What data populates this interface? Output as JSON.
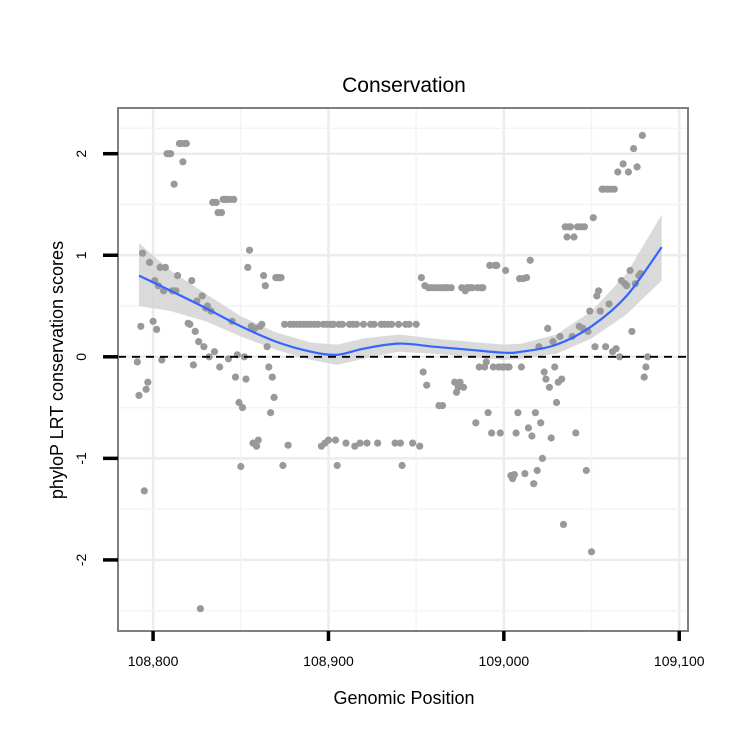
{
  "chart_data": {
    "type": "scatter",
    "title": "Conservation",
    "xlabel": "Genomic Position",
    "ylabel": "phyloP LRT conservation scores",
    "xlim": [
      108780,
      109105
    ],
    "ylim": [
      -2.7,
      2.45
    ],
    "x_ticks": [
      108800,
      108900,
      109000,
      109100
    ],
    "x_tick_labels": [
      "108,800",
      "108,900",
      "109,000",
      "109,100"
    ],
    "y_ticks": [
      -2,
      -1,
      0,
      1,
      2
    ],
    "y_tick_labels": [
      "-2",
      "-1",
      "0",
      "1",
      "2"
    ],
    "grid": true,
    "reference_line": {
      "y": 0,
      "style": "dashed"
    },
    "point_color": "#999999",
    "smooth_color": "#3366ff",
    "ribbon_color": "#d4d4d4",
    "points": [
      [
        108791,
        -0.05
      ],
      [
        108792,
        -0.38
      ],
      [
        108793,
        0.3
      ],
      [
        108794,
        1.02
      ],
      [
        108795,
        -1.32
      ],
      [
        108796,
        -0.32
      ],
      [
        108797,
        -0.25
      ],
      [
        108798,
        0.93
      ],
      [
        108800,
        0.35
      ],
      [
        108801,
        0.75
      ],
      [
        108802,
        0.27
      ],
      [
        108803,
        0.7
      ],
      [
        108804,
        0.88
      ],
      [
        108805,
        -0.03
      ],
      [
        108806,
        0.65
      ],
      [
        108807,
        0.88
      ],
      [
        108808,
        2.0
      ],
      [
        108809,
        2.0
      ],
      [
        108810,
        2.0
      ],
      [
        108811,
        0.65
      ],
      [
        108812,
        1.7
      ],
      [
        108813,
        0.65
      ],
      [
        108814,
        0.8
      ],
      [
        108815,
        2.1
      ],
      [
        108816,
        2.1
      ],
      [
        108817,
        1.92
      ],
      [
        108818,
        2.1
      ],
      [
        108819,
        2.1
      ],
      [
        108820,
        0.33
      ],
      [
        108821,
        0.32
      ],
      [
        108822,
        0.75
      ],
      [
        108823,
        -0.08
      ],
      [
        108824,
        0.25
      ],
      [
        108825,
        0.55
      ],
      [
        108826,
        0.15
      ],
      [
        108827,
        -2.48
      ],
      [
        108828,
        0.6
      ],
      [
        108829,
        0.1
      ],
      [
        108830,
        0.48
      ],
      [
        108831,
        0.5
      ],
      [
        108832,
        0.0
      ],
      [
        108833,
        0.45
      ],
      [
        108834,
        1.52
      ],
      [
        108835,
        0.05
      ],
      [
        108836,
        1.52
      ],
      [
        108837,
        1.42
      ],
      [
        108838,
        -0.1
      ],
      [
        108839,
        1.42
      ],
      [
        108840,
        1.55
      ],
      [
        108841,
        1.55
      ],
      [
        108842,
        1.55
      ],
      [
        108843,
        -0.02
      ],
      [
        108844,
        1.55
      ],
      [
        108845,
        0.35
      ],
      [
        108846,
        1.55
      ],
      [
        108847,
        -0.2
      ],
      [
        108848,
        0.02
      ],
      [
        108849,
        -0.45
      ],
      [
        108850,
        -1.08
      ],
      [
        108851,
        -0.5
      ],
      [
        108852,
        0.0
      ],
      [
        108853,
        -0.22
      ],
      [
        108854,
        0.88
      ],
      [
        108855,
        1.05
      ],
      [
        108856,
        0.3
      ],
      [
        108857,
        -0.85
      ],
      [
        108858,
        0.28
      ],
      [
        108859,
        -0.88
      ],
      [
        108860,
        -0.82
      ],
      [
        108861,
        0.3
      ],
      [
        108862,
        0.32
      ],
      [
        108863,
        0.8
      ],
      [
        108864,
        0.7
      ],
      [
        108865,
        0.1
      ],
      [
        108866,
        -0.1
      ],
      [
        108867,
        -0.55
      ],
      [
        108868,
        -0.2
      ],
      [
        108869,
        -0.4
      ],
      [
        108870,
        0.78
      ],
      [
        108871,
        0.78
      ],
      [
        108872,
        0.78
      ],
      [
        108873,
        0.78
      ],
      [
        108874,
        -1.07
      ],
      [
        108875,
        0.32
      ],
      [
        108877,
        -0.87
      ],
      [
        108878,
        0.32
      ],
      [
        108880,
        0.32
      ],
      [
        108882,
        0.32
      ],
      [
        108884,
        0.32
      ],
      [
        108886,
        0.32
      ],
      [
        108888,
        0.32
      ],
      [
        108890,
        0.32
      ],
      [
        108892,
        0.32
      ],
      [
        108894,
        0.32
      ],
      [
        108896,
        -0.88
      ],
      [
        108897,
        0.32
      ],
      [
        108898,
        -0.85
      ],
      [
        108899,
        0.32
      ],
      [
        108900,
        -0.82
      ],
      [
        108901,
        0.32
      ],
      [
        108902,
        0.32
      ],
      [
        108903,
        0.32
      ],
      [
        108904,
        -0.82
      ],
      [
        108905,
        -1.07
      ],
      [
        108906,
        0.32
      ],
      [
        108908,
        0.32
      ],
      [
        108910,
        -0.85
      ],
      [
        108912,
        0.32
      ],
      [
        108914,
        0.32
      ],
      [
        108915,
        -0.88
      ],
      [
        108916,
        0.32
      ],
      [
        108918,
        -0.85
      ],
      [
        108920,
        0.32
      ],
      [
        108922,
        -0.85
      ],
      [
        108924,
        0.32
      ],
      [
        108926,
        0.32
      ],
      [
        108928,
        -0.85
      ],
      [
        108930,
        0.32
      ],
      [
        108932,
        0.32
      ],
      [
        108934,
        0.32
      ],
      [
        108936,
        0.32
      ],
      [
        108938,
        -0.85
      ],
      [
        108940,
        0.32
      ],
      [
        108941,
        -0.85
      ],
      [
        108942,
        -1.07
      ],
      [
        108944,
        0.32
      ],
      [
        108946,
        0.32
      ],
      [
        108948,
        -0.85
      ],
      [
        108950,
        0.32
      ],
      [
        108952,
        -0.88
      ],
      [
        108953,
        0.78
      ],
      [
        108954,
        -0.15
      ],
      [
        108955,
        0.7
      ],
      [
        108956,
        -0.28
      ],
      [
        108957,
        0.68
      ],
      [
        108958,
        0.68
      ],
      [
        108960,
        0.68
      ],
      [
        108962,
        0.68
      ],
      [
        108963,
        -0.48
      ],
      [
        108964,
        0.68
      ],
      [
        108965,
        -0.48
      ],
      [
        108966,
        0.68
      ],
      [
        108967,
        0.68
      ],
      [
        108968,
        0.68
      ],
      [
        108970,
        0.68
      ],
      [
        108972,
        -0.25
      ],
      [
        108973,
        -0.35
      ],
      [
        108974,
        -0.3
      ],
      [
        108975,
        -0.25
      ],
      [
        108976,
        0.68
      ],
      [
        108977,
        -0.3
      ],
      [
        108978,
        0.65
      ],
      [
        108979,
        0.68
      ],
      [
        108980,
        0.68
      ],
      [
        108981,
        0.68
      ],
      [
        108982,
        0.68
      ],
      [
        108984,
        -0.65
      ],
      [
        108985,
        0.68
      ],
      [
        108986,
        -0.1
      ],
      [
        108987,
        0.68
      ],
      [
        108988,
        0.68
      ],
      [
        108989,
        -0.1
      ],
      [
        108990,
        -0.05
      ],
      [
        108991,
        -0.55
      ],
      [
        108992,
        0.9
      ],
      [
        108993,
        -0.75
      ],
      [
        108994,
        -0.1
      ],
      [
        108995,
        0.9
      ],
      [
        108996,
        0.9
      ],
      [
        108997,
        -0.1
      ],
      [
        108998,
        -0.75
      ],
      [
        108999,
        -0.1
      ],
      [
        109000,
        -0.1
      ],
      [
        109001,
        0.85
      ],
      [
        109002,
        -0.1
      ],
      [
        109003,
        -0.1
      ],
      [
        109004,
        -1.17
      ],
      [
        109005,
        -1.2
      ],
      [
        109006,
        -1.16
      ],
      [
        109007,
        -0.75
      ],
      [
        109008,
        -0.55
      ],
      [
        109009,
        0.77
      ],
      [
        109010,
        -0.1
      ],
      [
        109011,
        0.77
      ],
      [
        109012,
        -1.15
      ],
      [
        109013,
        0.78
      ],
      [
        109014,
        -0.7
      ],
      [
        109015,
        0.95
      ],
      [
        109016,
        -0.78
      ],
      [
        109017,
        -1.25
      ],
      [
        109018,
        -0.55
      ],
      [
        109019,
        -1.12
      ],
      [
        109020,
        0.1
      ],
      [
        109021,
        -0.65
      ],
      [
        109022,
        -1.0
      ],
      [
        109023,
        -0.15
      ],
      [
        109024,
        -0.22
      ],
      [
        109025,
        0.28
      ],
      [
        109026,
        -0.3
      ],
      [
        109027,
        -0.8
      ],
      [
        109028,
        0.15
      ],
      [
        109029,
        -0.1
      ],
      [
        109030,
        -0.45
      ],
      [
        109031,
        -0.25
      ],
      [
        109032,
        0.2
      ],
      [
        109033,
        -0.22
      ],
      [
        109034,
        -1.65
      ],
      [
        109035,
        1.28
      ],
      [
        109036,
        1.18
      ],
      [
        109037,
        1.28
      ],
      [
        109038,
        1.28
      ],
      [
        109039,
        0.2
      ],
      [
        109040,
        1.18
      ],
      [
        109041,
        -0.75
      ],
      [
        109042,
        1.28
      ],
      [
        109043,
        0.3
      ],
      [
        109044,
        1.28
      ],
      [
        109045,
        0.28
      ],
      [
        109046,
        1.28
      ],
      [
        109047,
        -1.12
      ],
      [
        109048,
        0.25
      ],
      [
        109049,
        0.45
      ],
      [
        109050,
        -1.92
      ],
      [
        109051,
        1.37
      ],
      [
        109052,
        0.1
      ],
      [
        109053,
        0.6
      ],
      [
        109054,
        0.65
      ],
      [
        109055,
        0.45
      ],
      [
        109056,
        1.65
      ],
      [
        109057,
        1.65
      ],
      [
        109058,
        0.1
      ],
      [
        109059,
        1.65
      ],
      [
        109060,
        0.52
      ],
      [
        109061,
        1.65
      ],
      [
        109062,
        0.05
      ],
      [
        109063,
        1.65
      ],
      [
        109064,
        0.08
      ],
      [
        109065,
        1.82
      ],
      [
        109066,
        0.0
      ],
      [
        109067,
        0.75
      ],
      [
        109068,
        1.9
      ],
      [
        109069,
        0.72
      ],
      [
        109070,
        0.7
      ],
      [
        109071,
        1.82
      ],
      [
        109072,
        0.85
      ],
      [
        109073,
        0.25
      ],
      [
        109074,
        2.05
      ],
      [
        109075,
        0.72
      ],
      [
        109076,
        1.87
      ],
      [
        109077,
        0.8
      ],
      [
        109078,
        0.82
      ],
      [
        109079,
        2.18
      ],
      [
        109080,
        -0.2
      ],
      [
        109081,
        -0.1
      ],
      [
        109082,
        0.0
      ]
    ],
    "smooth": {
      "x": [
        108792,
        108810,
        108830,
        108850,
        108870,
        108890,
        108905,
        108920,
        108940,
        108960,
        108980,
        109000,
        109010,
        109030,
        109050,
        109070,
        109090
      ],
      "y": [
        0.8,
        0.65,
        0.48,
        0.3,
        0.15,
        0.05,
        0.02,
        0.08,
        0.13,
        0.1,
        0.07,
        0.04,
        0.05,
        0.12,
        0.3,
        0.6,
        1.08
      ],
      "lo": [
        0.5,
        0.45,
        0.35,
        0.2,
        0.07,
        -0.03,
        -0.08,
        -0.02,
        0.05,
        0.03,
        0.0,
        -0.03,
        -0.02,
        0.03,
        0.18,
        0.42,
        0.75
      ],
      "hi": [
        1.12,
        0.85,
        0.62,
        0.4,
        0.24,
        0.14,
        0.12,
        0.18,
        0.22,
        0.18,
        0.15,
        0.12,
        0.13,
        0.22,
        0.45,
        0.82,
        1.4
      ]
    }
  }
}
